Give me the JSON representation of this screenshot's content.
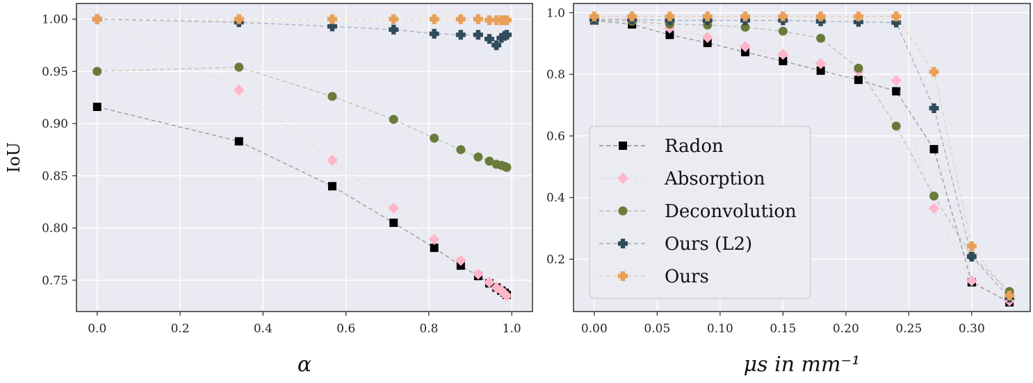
{
  "colors": {
    "background": "#eaeaf2",
    "grid": "#ffffff",
    "radon": "#000000",
    "absorption": "#ffb6c8",
    "deconvolution": "#6b7a3a",
    "ours_l2": "#2f4b5c",
    "ours": "#e8a058"
  },
  "legend": {
    "items": [
      {
        "label": "Radon",
        "marker": "square",
        "color": "#000000"
      },
      {
        "label": "Absorption",
        "marker": "diamond",
        "color": "#ffb6c8"
      },
      {
        "label": "Deconvolution",
        "marker": "circle",
        "color": "#6b7a3a"
      },
      {
        "label": "Ours (L2)",
        "marker": "plus",
        "color": "#2f4b5c"
      },
      {
        "label": "Ours",
        "marker": "plus",
        "color": "#e8a058"
      }
    ]
  },
  "chart_data": [
    {
      "type": "scatter",
      "xlabel": "α",
      "ylabel": "IoU",
      "xlim": [
        -0.05,
        1.05
      ],
      "ylim": [
        0.72,
        1.015
      ],
      "xticks": [
        "0.0",
        "0.2",
        "0.4",
        "0.6",
        "0.8",
        "1.0"
      ],
      "xtick_values": [
        0.0,
        0.2,
        0.4,
        0.6,
        0.8,
        1.0
      ],
      "yticks": [
        "0.75",
        "0.80",
        "0.85",
        "0.90",
        "0.95",
        "1.00"
      ],
      "ytick_values": [
        0.75,
        0.8,
        0.85,
        0.9,
        0.95,
        1.0
      ],
      "grid": true,
      "x": [
        0.0,
        0.342,
        0.567,
        0.715,
        0.813,
        0.877,
        0.919,
        0.946,
        0.963,
        0.975,
        0.983,
        0.988
      ],
      "series": [
        {
          "name": "Radon",
          "values": [
            0.916,
            0.883,
            0.84,
            0.805,
            0.781,
            0.764,
            0.754,
            0.747,
            0.743,
            0.74,
            0.738,
            0.736
          ]
        },
        {
          "name": "Absorption",
          "values": [
            1.0,
            0.932,
            0.865,
            0.819,
            0.789,
            0.769,
            0.756,
            0.748,
            0.743,
            0.74,
            0.737,
            0.735
          ]
        },
        {
          "name": "Deconvolution",
          "values": [
            0.95,
            0.954,
            0.926,
            0.904,
            0.886,
            0.875,
            0.868,
            0.864,
            0.861,
            0.86,
            0.859,
            0.858
          ]
        },
        {
          "name": "Ours (L2)",
          "values": [
            1.0,
            0.997,
            0.993,
            0.99,
            0.986,
            0.985,
            0.985,
            0.981,
            0.975,
            0.982,
            0.984,
            0.985
          ]
        },
        {
          "name": "Ours",
          "values": [
            1.0,
            1.0,
            1.0,
            1.0,
            1.0,
            1.0,
            1.0,
            0.999,
            0.999,
            0.999,
            0.999,
            0.999
          ]
        }
      ]
    },
    {
      "type": "scatter",
      "xlabel": "μs in mm⁻¹",
      "ylabel": "",
      "xlim": [
        -0.0165,
        0.3465
      ],
      "ylim": [
        0.03,
        1.03
      ],
      "xticks": [
        "0.00",
        "0.05",
        "0.10",
        "0.15",
        "0.20",
        "0.25",
        "0.30"
      ],
      "xtick_values": [
        0.0,
        0.05,
        0.1,
        0.15,
        0.2,
        0.25,
        0.3
      ],
      "yticks": [
        "0.2",
        "0.4",
        "0.6",
        "0.8",
        "1.0"
      ],
      "ytick_values": [
        0.2,
        0.4,
        0.6,
        0.8,
        1.0
      ],
      "grid": true,
      "legend_position": "lower-left",
      "x": [
        0.0,
        0.03,
        0.06,
        0.09,
        0.12,
        0.15,
        0.18,
        0.21,
        0.24,
        0.27,
        0.3,
        0.33
      ],
      "series": [
        {
          "name": "Radon",
          "values": [
            0.975,
            0.962,
            0.928,
            0.902,
            0.872,
            0.843,
            0.812,
            0.782,
            0.745,
            0.557,
            0.125,
            0.06
          ]
        },
        {
          "name": "Absorption",
          "values": [
            0.985,
            0.975,
            0.95,
            0.92,
            0.89,
            0.865,
            0.835,
            0.81,
            0.78,
            0.365,
            0.13,
            0.065
          ]
        },
        {
          "name": "Deconvolution",
          "values": [
            0.975,
            0.972,
            0.963,
            0.96,
            0.953,
            0.94,
            0.917,
            0.82,
            0.632,
            0.405,
            0.21,
            0.095
          ]
        },
        {
          "name": "Ours (L2)",
          "values": [
            0.978,
            0.978,
            0.975,
            0.975,
            0.975,
            0.975,
            0.972,
            0.97,
            0.968,
            0.69,
            0.208,
            0.075
          ]
        },
        {
          "name": "Ours",
          "values": [
            0.988,
            0.988,
            0.988,
            0.988,
            0.988,
            0.988,
            0.988,
            0.988,
            0.988,
            0.808,
            0.242,
            0.082
          ]
        }
      ]
    }
  ]
}
